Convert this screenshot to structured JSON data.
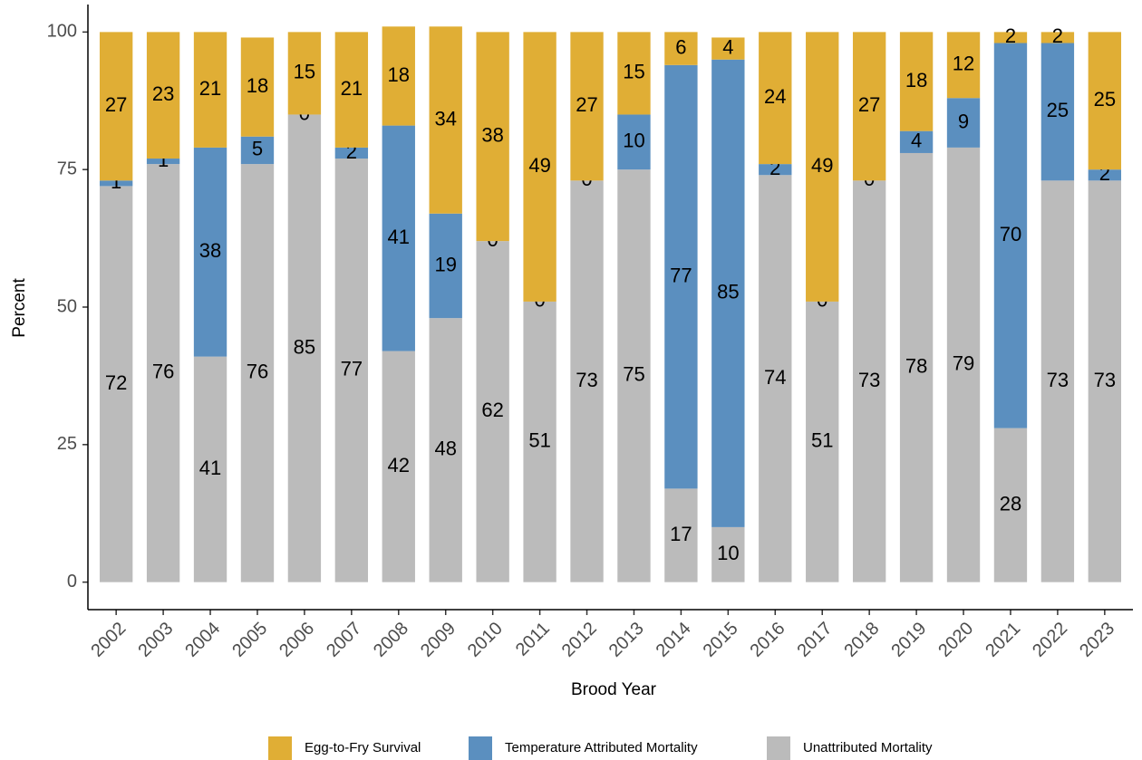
{
  "chart_data": {
    "type": "stacked_bar",
    "x_label": "Brood Year",
    "y_label": "Percent",
    "categories": [
      "2002",
      "2003",
      "2004",
      "2005",
      "2006",
      "2007",
      "2008",
      "2009",
      "2010",
      "2011",
      "2012",
      "2013",
      "2014",
      "2015",
      "2016",
      "2017",
      "2018",
      "2019",
      "2020",
      "2021",
      "2022",
      "2023"
    ],
    "series": [
      {
        "name": "Egg-to-Fry Survival",
        "color": "#e0ae35",
        "values": [
          27,
          23,
          21,
          18,
          15,
          21,
          18,
          34,
          38,
          49,
          27,
          15,
          6,
          4,
          24,
          49,
          27,
          18,
          12,
          2,
          2,
          25
        ]
      },
      {
        "name": "Temperature Attributed Mortality",
        "color": "#5b8fbf",
        "values": [
          1,
          1,
          38,
          5,
          0,
          2,
          41,
          19,
          0,
          0,
          0,
          10,
          77,
          85,
          2,
          0,
          0,
          4,
          9,
          70,
          25,
          2
        ]
      },
      {
        "name": "Unattributed Mortality",
        "color": "#bbbbbb",
        "values": [
          72,
          76,
          41,
          76,
          85,
          77,
          42,
          48,
          62,
          51,
          73,
          75,
          17,
          10,
          74,
          51,
          73,
          78,
          79,
          28,
          73,
          73
        ]
      }
    ],
    "ylim": [
      -5,
      105
    ],
    "yticks": [
      0,
      25,
      50,
      75,
      100
    ],
    "legend": "bottom"
  }
}
